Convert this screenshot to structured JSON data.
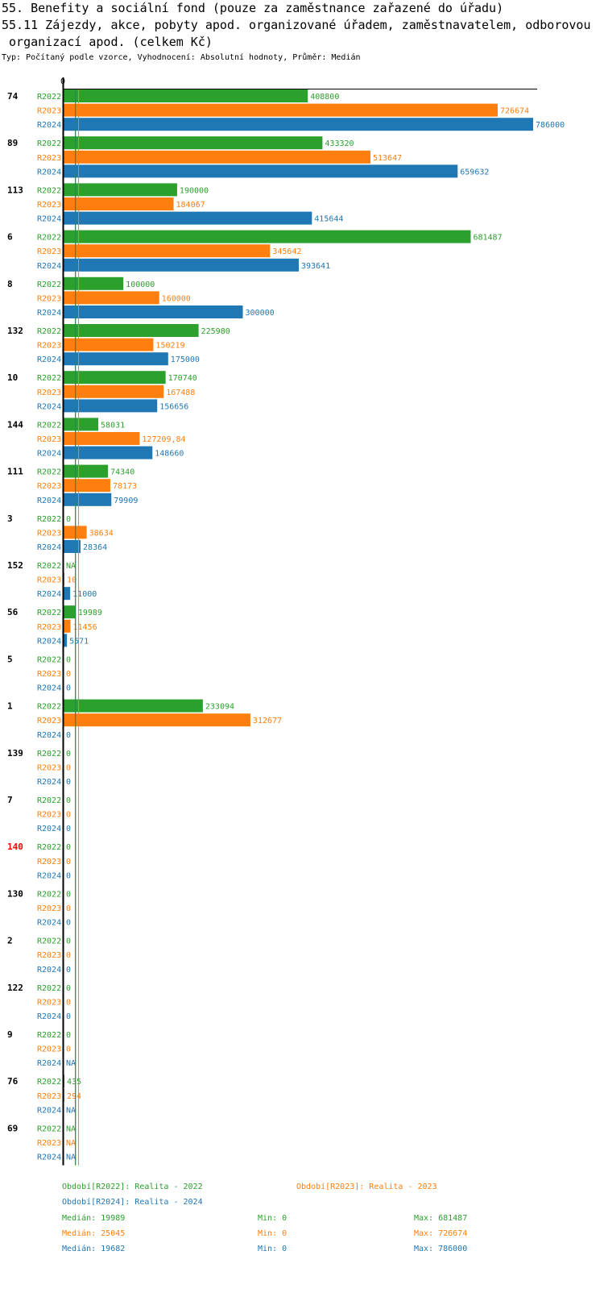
{
  "header": {
    "title_line1": "55. Benefity a sociální fond (pouze za zaměstnance zařazené do úřadu)",
    "title_line2": "55.11 Zájezdy, akce, pobyty apod. organizované úřadem, zaměstnavatelem, odborovou",
    "title_line3": " organizací apod. (celkem Kč)",
    "subtitle": "Typ: Počítaný podle vzorce, Vyhodnocení: Absolutní hodnoty, Průměr: Medián"
  },
  "colors": {
    "R2022": "#2ca02c",
    "R2023": "#ff7f0e",
    "R2024": "#1f77b4",
    "highlight": "#ff0000"
  },
  "chart_data": {
    "type": "bar",
    "orientation": "horizontal",
    "axis_zero_label": "0",
    "xlim": [
      0,
      786000
    ],
    "series_names": [
      "R2022",
      "R2023",
      "R2024"
    ],
    "groups": [
      {
        "id": "74",
        "values": [
          "408800",
          "726674",
          "786000"
        ]
      },
      {
        "id": "89",
        "values": [
          "433320",
          "513647",
          "659632"
        ]
      },
      {
        "id": "113",
        "values": [
          "190000",
          "184067",
          "415644"
        ]
      },
      {
        "id": "6",
        "values": [
          "681487",
          "345642",
          "393641"
        ]
      },
      {
        "id": "8",
        "values": [
          "100000",
          "160000",
          "300000"
        ]
      },
      {
        "id": "132",
        "values": [
          "225980",
          "150219",
          "175000"
        ]
      },
      {
        "id": "10",
        "values": [
          "170740",
          "167488",
          "156656"
        ]
      },
      {
        "id": "144",
        "values": [
          "58031",
          "127209,84",
          "148660"
        ]
      },
      {
        "id": "111",
        "values": [
          "74340",
          "78173",
          "79909"
        ]
      },
      {
        "id": "3",
        "values": [
          "0",
          "38634",
          "28364"
        ]
      },
      {
        "id": "152",
        "values": [
          "NA",
          "10",
          "11000"
        ]
      },
      {
        "id": "56",
        "values": [
          "19989",
          "11456",
          "5571"
        ]
      },
      {
        "id": "5",
        "values": [
          "0",
          "0",
          "0"
        ]
      },
      {
        "id": "1",
        "values": [
          "233094",
          "312677",
          "0"
        ]
      },
      {
        "id": "139",
        "values": [
          "0",
          "0",
          "0"
        ]
      },
      {
        "id": "7",
        "values": [
          "0",
          "0",
          "0"
        ]
      },
      {
        "id": "140",
        "values": [
          "0",
          "0",
          "0"
        ],
        "highlight": true
      },
      {
        "id": "130",
        "values": [
          "0",
          "0",
          "0"
        ]
      },
      {
        "id": "2",
        "values": [
          "0",
          "0",
          "0"
        ]
      },
      {
        "id": "122",
        "values": [
          "0",
          "0",
          "0"
        ]
      },
      {
        "id": "9",
        "values": [
          "0",
          "0",
          "NA"
        ]
      },
      {
        "id": "76",
        "values": [
          "435",
          "294",
          "NA"
        ]
      },
      {
        "id": "69",
        "values": [
          "NA",
          "NA",
          "NA"
        ]
      }
    ],
    "median_lines": [
      19989,
      25045,
      19682
    ]
  },
  "legend": {
    "period_2022": "Období[R2022]: Realita - 2022",
    "period_2023": "Období[R2023]: Realita - 2023",
    "period_2024": "Období[R2024]: Realita - 2024",
    "stats": [
      {
        "median": "Medián: 19989",
        "min": "Min: 0",
        "max": "Max: 681487"
      },
      {
        "median": "Medián: 25045",
        "min": "Min: 0",
        "max": "Max: 726674"
      },
      {
        "median": "Medián: 19682",
        "min": "Min: 0",
        "max": "Max: 786000"
      }
    ]
  }
}
